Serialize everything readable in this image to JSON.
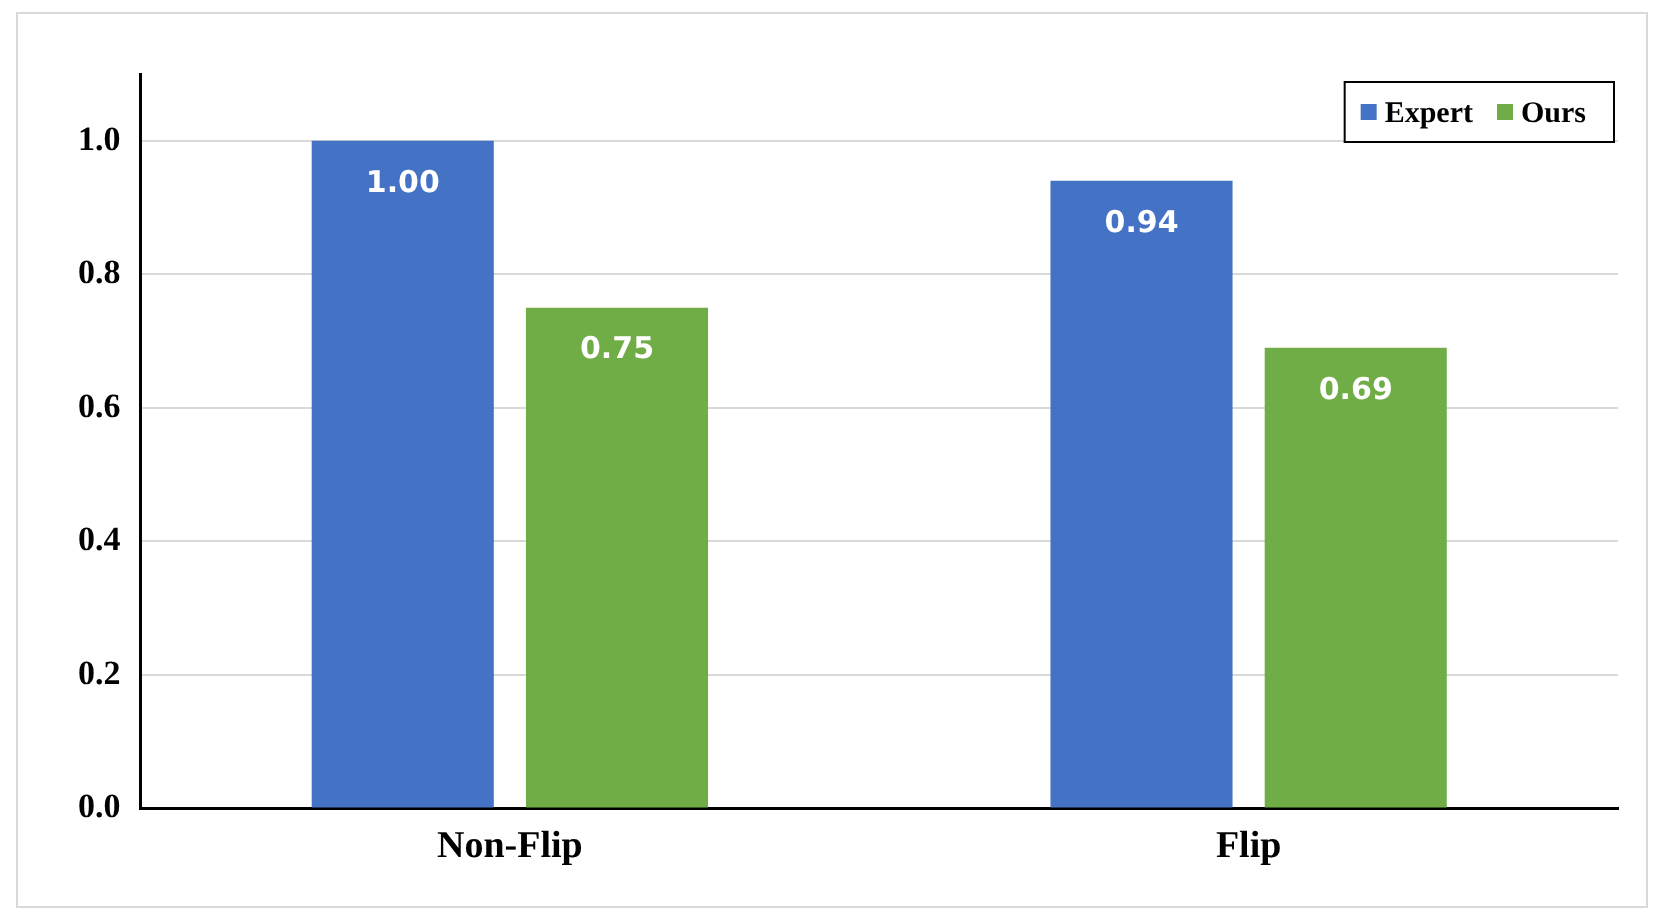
{
  "chart_data": {
    "type": "bar",
    "categories": [
      "Non-Flip",
      "Flip"
    ],
    "series": [
      {
        "name": "Expert",
        "color": "#4472c4",
        "values": [
          1.0,
          0.94
        ],
        "value_labels": [
          "1.00",
          "0.94"
        ]
      },
      {
        "name": "Ours",
        "color": "#70ad47",
        "values": [
          0.75,
          0.69
        ],
        "value_labels": [
          "0.75",
          "0.69"
        ]
      }
    ],
    "ylim": [
      0,
      1.1
    ],
    "yticks": [
      {
        "value": 0,
        "label": "0.0"
      },
      0.2,
      0.4,
      0.6,
      0.8,
      {
        "value": 1,
        "label": "1.0"
      }
    ],
    "grid": "y",
    "legend": "top right"
  }
}
